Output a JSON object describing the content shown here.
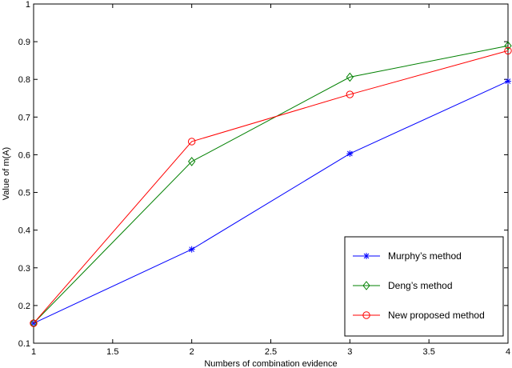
{
  "chart_data": {
    "type": "line",
    "title": "",
    "xlabel": "Numbers of combination evidence",
    "ylabel": "Value of m(A)",
    "xlim": [
      1,
      4
    ],
    "ylim": [
      0.1,
      1
    ],
    "xticks": [
      1,
      1.5,
      2,
      2.5,
      3,
      3.5,
      4
    ],
    "xtick_labels": [
      "1",
      "1.5",
      "2",
      "2.5",
      "3",
      "3.5",
      "4"
    ],
    "yticks": [
      0.1,
      0.2,
      0.3,
      0.4,
      0.5,
      0.6,
      0.7,
      0.8,
      0.9,
      1
    ],
    "ytick_labels": [
      "0.1",
      "0.2",
      "0.3",
      "0.4",
      "0.5",
      "0.6",
      "0.7",
      "0.8",
      "0.9",
      "1"
    ],
    "grid": false,
    "legend_position": "bottom-right",
    "x": [
      1,
      2,
      3,
      4
    ],
    "series": [
      {
        "name": "Murphy’s method",
        "values": [
          0.153,
          0.349,
          0.603,
          0.795
        ],
        "color": "#0000ff",
        "marker": "star"
      },
      {
        "name": "Deng’s method",
        "values": [
          0.153,
          0.582,
          0.806,
          0.889
        ],
        "color": "#008000",
        "marker": "diamond"
      },
      {
        "name": "New proposed method",
        "values": [
          0.153,
          0.635,
          0.76,
          0.876
        ],
        "color": "#ff0000",
        "marker": "circle"
      }
    ]
  }
}
